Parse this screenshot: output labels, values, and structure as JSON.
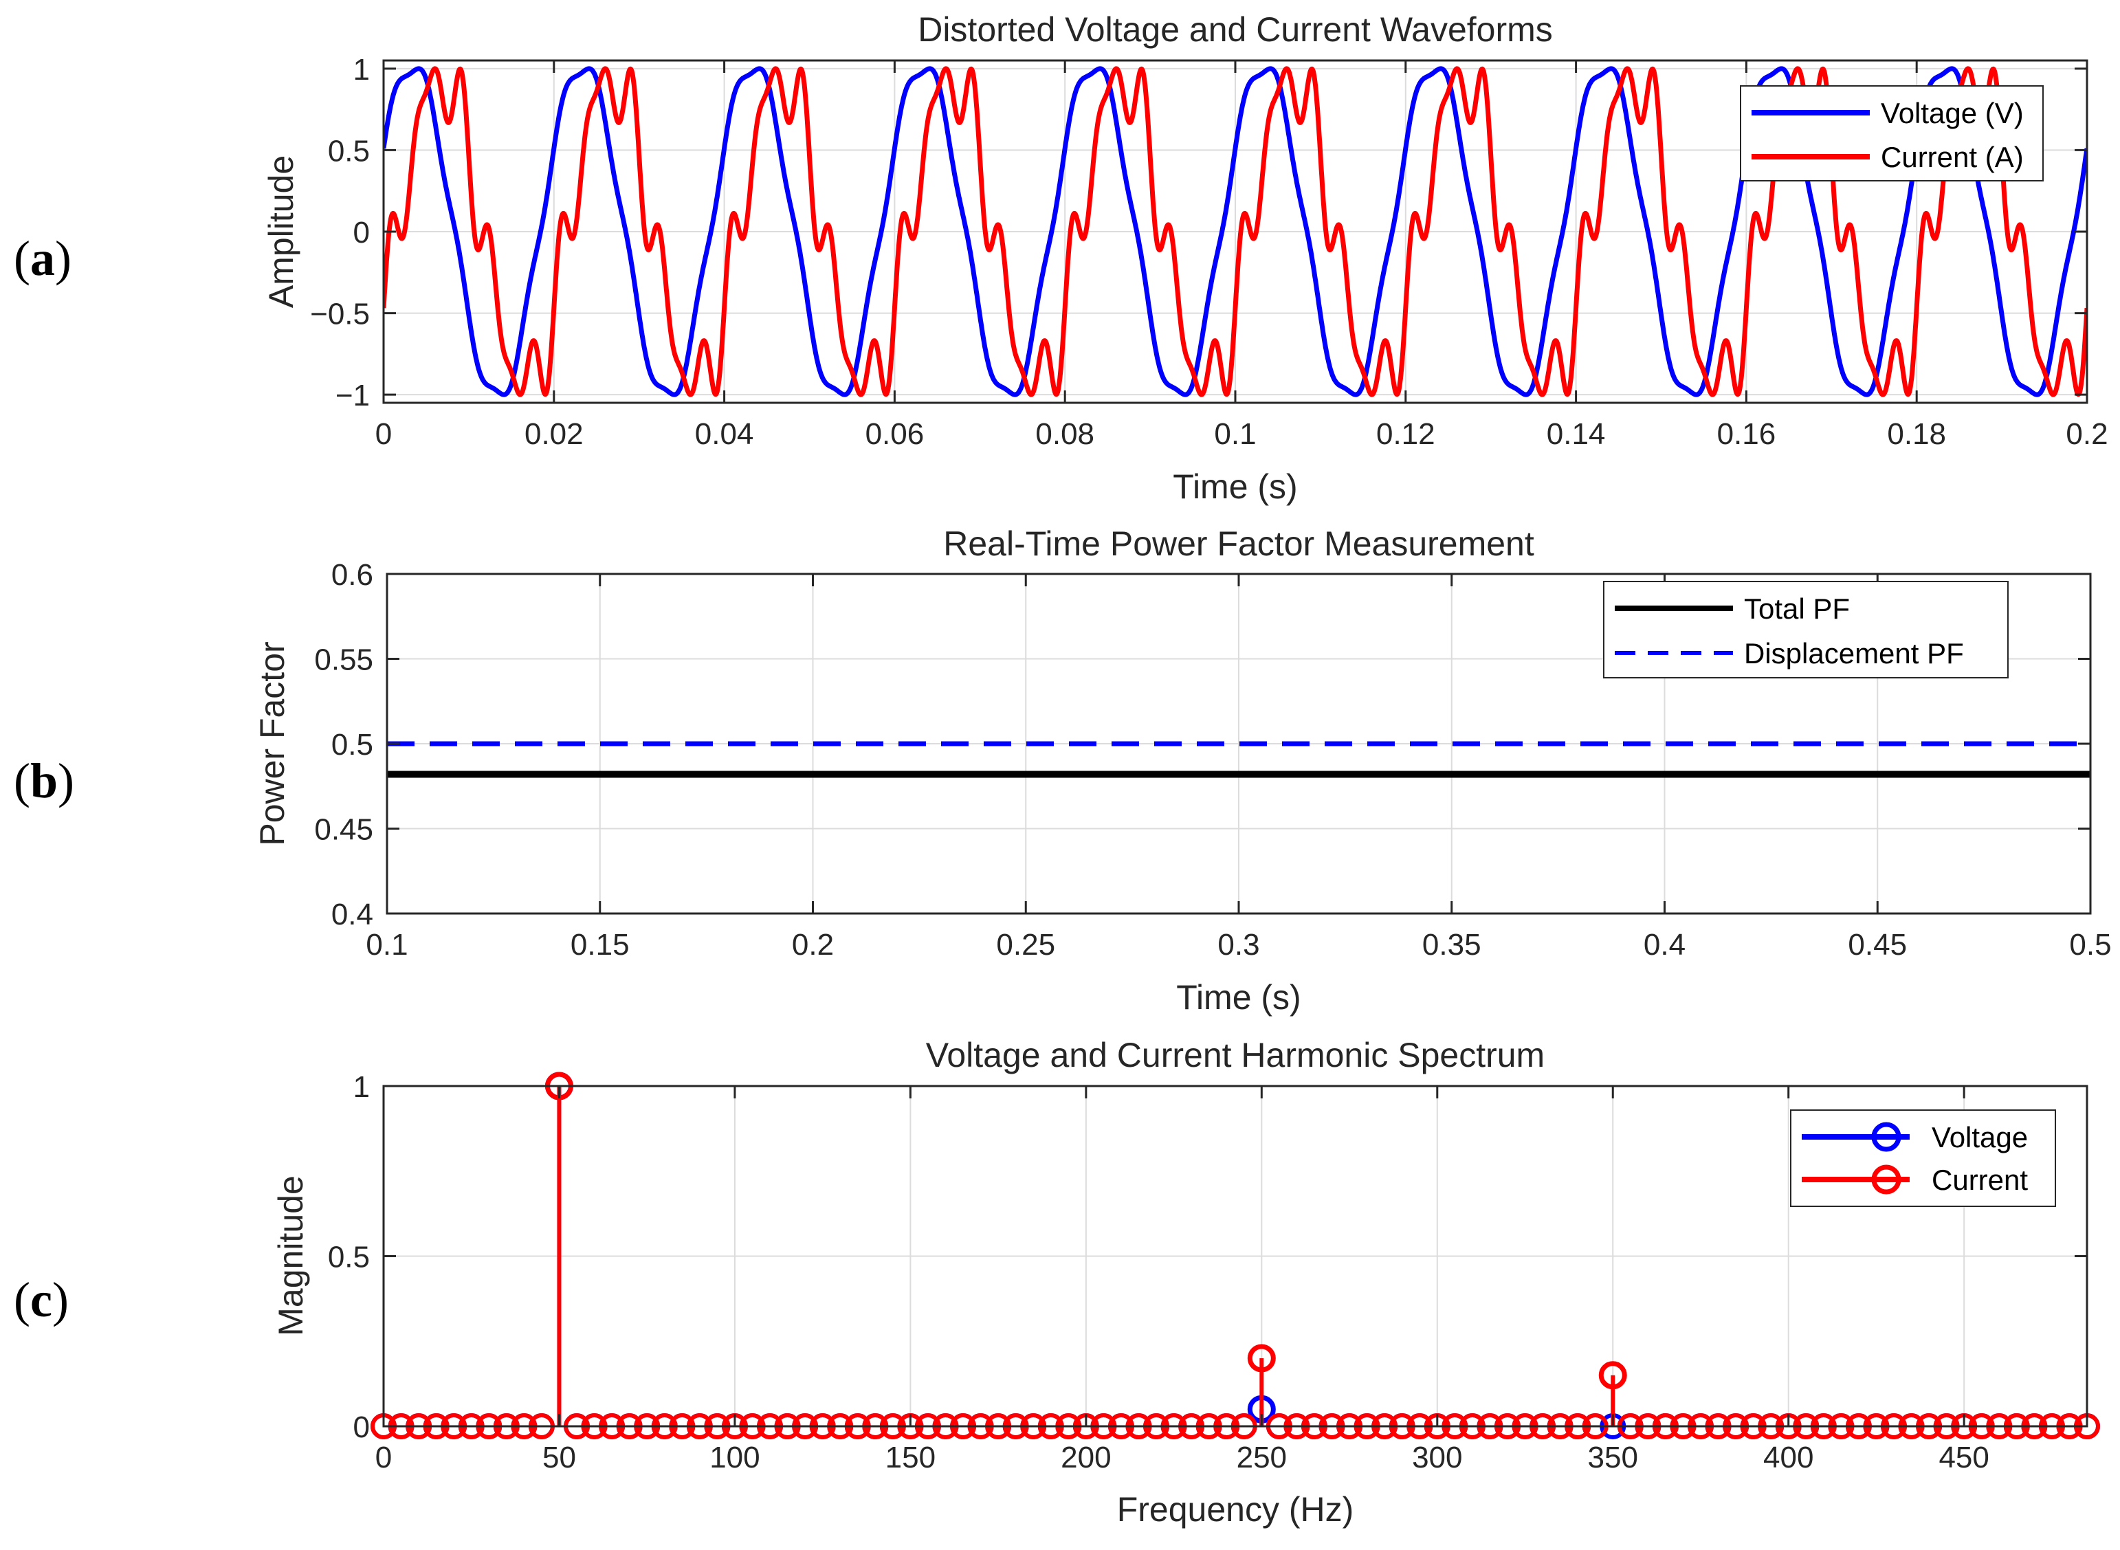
{
  "panel_labels": [
    {
      "open": "(",
      "letter": "a",
      "close": ")"
    },
    {
      "open": "(",
      "letter": "b",
      "close": ")"
    },
    {
      "open": "(",
      "letter": "c",
      "close": ")"
    }
  ],
  "colors": {
    "voltage": "#0000ff",
    "current": "#ff0000",
    "total_pf": "#000000",
    "displacement_pf": "#0000ff",
    "grid": "#dcdcdc",
    "axis": "#262626"
  },
  "chart_data": [
    {
      "type": "line",
      "title": "Distorted Voltage and Current Waveforms",
      "xlabel": "Time (s)",
      "ylabel": "Amplitude",
      "xlim": [
        0,
        0.2
      ],
      "ylim": [
        -1.05,
        1.05
      ],
      "grid": true,
      "x_ticks": [
        0,
        0.02,
        0.04,
        0.06,
        0.08,
        0.1,
        0.12,
        0.14,
        0.16,
        0.18,
        0.2
      ],
      "x_tick_labels": [
        "0",
        "0.02",
        "0.04",
        "0.06",
        "0.08",
        "0.1",
        "0.12",
        "0.14",
        "0.16",
        "0.18",
        "0.2"
      ],
      "y_ticks": [
        -1,
        -0.5,
        0,
        0.5,
        1
      ],
      "y_tick_labels": [
        "−1",
        "−0.5",
        "0",
        "0.5",
        "1"
      ],
      "legend_position": "top-right",
      "series": [
        {
          "name": "Voltage (V)",
          "color": "#0000ff",
          "fundamental_hz": 50,
          "harmonics": [
            {
              "order": 1,
              "amplitude": 1.0,
              "phase_deg": 30
            },
            {
              "order": 5,
              "amplitude": 0.05,
              "phase_deg": 0
            }
          ],
          "normalized_peak": 1
        },
        {
          "name": "Current (A)",
          "color": "#ff0000",
          "fundamental_hz": 50,
          "harmonics": [
            {
              "order": 1,
              "amplitude": 1.0,
              "phase_deg": -30
            },
            {
              "order": 5,
              "amplitude": 0.2,
              "phase_deg": 0
            },
            {
              "order": 7,
              "amplitude": 0.15,
              "phase_deg": 0
            }
          ],
          "normalized_peak": 1
        }
      ]
    },
    {
      "type": "line",
      "title": "Real-Time Power Factor Measurement",
      "xlabel": "Time (s)",
      "ylabel": "Power Factor",
      "xlim": [
        0.1,
        0.5
      ],
      "ylim": [
        0.4,
        0.6
      ],
      "grid": true,
      "x_ticks": [
        0.1,
        0.15,
        0.2,
        0.25,
        0.3,
        0.35,
        0.4,
        0.45,
        0.5
      ],
      "x_tick_labels": [
        "0.1",
        "0.15",
        "0.2",
        "0.25",
        "0.3",
        "0.35",
        "0.4",
        "0.45",
        "0.5"
      ],
      "y_ticks": [
        0.4,
        0.45,
        0.5,
        0.55,
        0.6
      ],
      "y_tick_labels": [
        "0.4",
        "0.45",
        "0.5",
        "0.55",
        "0.6"
      ],
      "legend_position": "top-right",
      "series": [
        {
          "name": "Total PF",
          "color": "#000000",
          "style": "solid",
          "x": [
            0.1,
            0.5
          ],
          "y": [
            0.482,
            0.482
          ]
        },
        {
          "name": "Displacement PF",
          "color": "#0000ff",
          "style": "dashed",
          "x": [
            0.1,
            0.5
          ],
          "y": [
            0.5,
            0.5
          ]
        }
      ]
    },
    {
      "type": "stem",
      "title": "Voltage and Current Harmonic Spectrum",
      "xlabel": "Frequency (Hz)",
      "ylabel": "Magnitude",
      "xlim": [
        0,
        485
      ],
      "ylim": [
        0,
        1
      ],
      "grid": true,
      "x_ticks": [
        0,
        50,
        100,
        150,
        200,
        250,
        300,
        350,
        400,
        450
      ],
      "x_tick_labels": [
        "0",
        "50",
        "100",
        "150",
        "200",
        "250",
        "300",
        "350",
        "400",
        "450"
      ],
      "y_ticks": [
        0,
        0.5,
        1
      ],
      "y_tick_labels": [
        "0",
        "0.5",
        "1"
      ],
      "legend_position": "top-right",
      "bin_spacing_hz": 5,
      "series": [
        {
          "name": "Voltage",
          "color": "#0000ff",
          "peaks": [
            {
              "x": 50,
              "y": 1.0
            },
            {
              "x": 250,
              "y": 0.05
            }
          ]
        },
        {
          "name": "Current",
          "color": "#ff0000",
          "peaks": [
            {
              "x": 50,
              "y": 1.0
            },
            {
              "x": 250,
              "y": 0.2
            },
            {
              "x": 350,
              "y": 0.15
            }
          ]
        }
      ]
    }
  ]
}
